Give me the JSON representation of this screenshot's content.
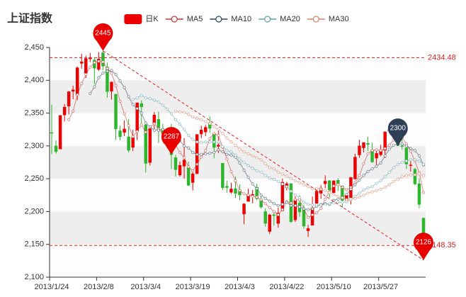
{
  "chart_data": {
    "type": "candlestick",
    "title": "上证指数",
    "categories": [
      "2013/1/24",
      null,
      null,
      null,
      null,
      null,
      null,
      null,
      null,
      null,
      null,
      "2013/2/8",
      null,
      null,
      null,
      null,
      null,
      null,
      null,
      null,
      null,
      null,
      "2013/3/4",
      null,
      null,
      null,
      null,
      null,
      null,
      null,
      null,
      null,
      null,
      "2013/3/19",
      null,
      null,
      null,
      null,
      null,
      null,
      null,
      null,
      null,
      null,
      "2013/4/3",
      null,
      null,
      null,
      null,
      null,
      null,
      null,
      null,
      null,
      null,
      "2013/4/22",
      null,
      null,
      null,
      null,
      null,
      null,
      null,
      null,
      null,
      null,
      "2013/5/10",
      null,
      null,
      null,
      null,
      null,
      null,
      null,
      null,
      null,
      null,
      "2013/5/27",
      null,
      null,
      null,
      null,
      null,
      null,
      null,
      null,
      null,
      null
    ],
    "series": [
      {
        "name": "日K",
        "type": "candlestick",
        "up_color": "#ec0000",
        "down_color": "#2db52d",
        "values": [
          [
            2320.26,
            2320.26,
            2287.3,
            2362.94
          ],
          [
            2300,
            2291.3,
            2288.26,
            2308.38
          ],
          [
            2295.35,
            2346.5,
            2295.35,
            2346.92
          ],
          [
            2347.22,
            2358.98,
            2337.35,
            2363.8
          ],
          [
            2360.75,
            2382.48,
            2347.89,
            2383.76
          ],
          [
            2383.43,
            2385.42,
            2371.23,
            2391.82
          ],
          [
            2377.41,
            2419.02,
            2369.57,
            2421.15
          ],
          [
            2425.92,
            2428.15,
            2417.58,
            2440.38
          ],
          [
            2411,
            2433.13,
            2403.3,
            2437.42
          ],
          [
            2432.68,
            2434.48,
            2427.7,
            2441.73
          ],
          [
            2430.69,
            2418.53,
            2394.22,
            2433.89
          ],
          [
            2416.62,
            2432.4,
            2414.4,
            2443.03
          ],
          [
            2441.91,
            2421.56,
            2415.43,
            2444.8
          ],
          [
            2420.26,
            2382.91,
            2373.53,
            2427.07
          ],
          [
            2383.49,
            2397.18,
            2370.61,
            2397.94
          ],
          [
            2378.82,
            2325.95,
            2309.17,
            2378.82
          ],
          [
            2322.94,
            2314.16,
            2308.76,
            2330.88
          ],
          [
            2320.62,
            2325.82,
            2315.01,
            2338.78
          ],
          [
            2313.74,
            2293.34,
            2289.89,
            2340.71
          ],
          [
            2297.77,
            2313.22,
            2292.03,
            2324.63
          ],
          [
            2322.32,
            2365.59,
            2308.92,
            2366.16
          ],
          [
            2364.54,
            2359.51,
            2330.86,
            2369.65
          ],
          [
            2332.08,
            2273.4,
            2259.25,
            2333.54
          ],
          [
            2274.81,
            2326.31,
            2270.1,
            2328.14
          ],
          [
            2333.61,
            2347.18,
            2321.6,
            2351.44
          ],
          [
            2340.44,
            2324.29,
            2304.27,
            2352.02
          ],
          [
            2326.42,
            2318.61,
            2314.59,
            2333.67
          ],
          [
            2314.68,
            2310.59,
            2296.58,
            2320.96
          ],
          [
            2309.16,
            2286.6,
            2264.83,
            2333.29
          ],
          [
            2282.17,
            2263.97,
            2253.25,
            2286.33
          ],
          [
            2255.77,
            2270.28,
            2253.31,
            2276.22
          ],
          [
            2269.31,
            2278.4,
            2250,
            2312.08
          ],
          [
            2267.29,
            2240.02,
            2239.21,
            2276.05
          ],
          [
            2244.26,
            2257.43,
            2232.02,
            2261.31
          ],
          [
            2257.74,
            2317.37,
            2257.42,
            2317.86
          ],
          [
            2318.21,
            2324.24,
            2311.6,
            2330.81
          ],
          [
            2321.4,
            2328.28,
            2314.97,
            2332
          ],
          [
            2334.74,
            2326.72,
            2319.91,
            2344.89
          ],
          [
            2318.58,
            2297.67,
            2281.12,
            2319.99
          ],
          [
            2299.38,
            2301.26,
            2289,
            2323.48
          ],
          [
            2273.55,
            2236.3,
            2232.91,
            2273.55
          ],
          [
            2238.49,
            2236.62,
            2228.81,
            2246.87
          ],
          [
            2229.46,
            2234.4,
            2227.31,
            2243.95
          ],
          [
            2234.9,
            2227.74,
            2220.44,
            2253.42
          ],
          [
            2232.69,
            2225.29,
            2217.25,
            2241.34
          ],
          [
            2196.24,
            2211.59,
            2180.67,
            2212.59
          ],
          [
            2215.47,
            2225.77,
            2215.47,
            2234.73
          ],
          [
            2224.93,
            2226.13,
            2212.56,
            2233.04
          ],
          [
            2236.98,
            2219.55,
            2217.26,
            2242.48
          ],
          [
            2218.09,
            2206.78,
            2204.44,
            2226.26
          ],
          [
            2199.91,
            2181.94,
            2177.39,
            2204.99
          ],
          [
            2169.63,
            2194.85,
            2165.78,
            2196.43
          ],
          [
            2195.03,
            2193.8,
            2178.47,
            2197.51
          ],
          [
            2181.82,
            2197.6,
            2175.44,
            2206.03
          ],
          [
            2201.12,
            2244.64,
            2200.58,
            2250.11
          ],
          [
            2236.4,
            2242.17,
            2232.26,
            2245.12
          ],
          [
            2242.62,
            2184.54,
            2182.81,
            2242.62
          ],
          [
            2187.35,
            2218.32,
            2184.11,
            2226.12
          ],
          [
            2213.19,
            2199.31,
            2191.85,
            2224.63
          ],
          [
            2203.89,
            2177.91,
            2173.86,
            2210.58
          ],
          [
            2170.78,
            2174.12,
            2161.14,
            2179.65
          ],
          [
            2179.05,
            2205.5,
            2179.05,
            2222.81
          ],
          [
            2212.5,
            2231.17,
            2212.5,
            2236.07
          ],
          [
            2227.86,
            2235.57,
            2219.44,
            2240.26
          ],
          [
            2242.39,
            2246.3,
            2235.42,
            2255.21
          ],
          [
            2246.96,
            2232.97,
            2221.38,
            2247.86
          ],
          [
            2228.82,
            2246.83,
            2225.81,
            2247.67
          ],
          [
            2247.68,
            2241.92,
            2231.36,
            2250.85
          ],
          [
            2238.9,
            2217.01,
            2205.87,
            2239.93
          ],
          [
            2217.09,
            2224.8,
            2213.58,
            2225.19
          ],
          [
            2221.34,
            2251.81,
            2210.77,
            2252.87
          ],
          [
            2249.81,
            2282.87,
            2248.41,
            2288.09
          ],
          [
            2286.33,
            2299.99,
            2281.9,
            2309.39
          ],
          [
            2297.11,
            2305.11,
            2290.12,
            2305.3
          ],
          [
            2303.75,
            2302.4,
            2292.43,
            2314.18
          ],
          [
            2293.81,
            2275.67,
            2274.1,
            2304.95
          ],
          [
            2281.45,
            2288.53,
            2270.25,
            2292.59
          ],
          [
            2286.66,
            2293.08,
            2283.94,
            2301.7
          ],
          [
            2293.4,
            2321.32,
            2281.47,
            2322.1
          ],
          [
            2323.54,
            2324.02,
            2321.17,
            2334.33
          ],
          [
            2316.25,
            2317.75,
            2310.49,
            2325.72
          ],
          [
            2320.74,
            2300.59,
            2299.37,
            2325.53
          ],
          [
            2300.21,
            2299.25,
            2294.11,
            2313.43
          ],
          [
            2297.1,
            2272.42,
            2264.76,
            2297.1
          ],
          [
            2270.71,
            2270.93,
            2260.87,
            2276.86
          ],
          [
            2264.43,
            2242.11,
            2240.07,
            2266.69
          ],
          [
            2242.26,
            2210.9,
            2205.07,
            2250.63
          ],
          [
            2190.1,
            2148.35,
            2126.22,
            2190.1
          ]
        ]
      },
      {
        "name": "MA5",
        "type": "line",
        "color": "#c23531",
        "values": [
          null,
          null,
          null,
          null,
          2340,
          2353,
          2378,
          2395,
          2409,
          2420,
          2427,
          2429,
          2428,
          2418,
          2411,
          2392,
          2368,
          2349,
          2331,
          2314,
          2322,
          2332,
          2321,
          2328,
          2334,
          2326,
          2318,
          2325,
          2318,
          2301,
          2290,
          2282,
          2268,
          2262,
          2272,
          2283,
          2293,
          2311,
          2319,
          2316,
          2298,
          2280,
          2261,
          2247,
          2232,
          2227,
          2225,
          2223,
          2222,
          2218,
          2212,
          2206,
          2200,
          2195,
          2203,
          2215,
          2213,
          2218,
          2218,
          2204,
          2191,
          2195,
          2198,
          2205,
          2219,
          2230,
          2239,
          2241,
          2237,
          2233,
          2237,
          2244,
          2255,
          2273,
          2288,
          2293,
          2294,
          2293,
          2296,
          2301,
          2309,
          2311,
          2313,
          2303,
          2292,
          2277,
          2259,
          2229
        ]
      },
      {
        "name": "MA10",
        "type": "line",
        "color": "#2f4554",
        "values": [
          null,
          null,
          null,
          null,
          null,
          null,
          null,
          null,
          null,
          2380,
          2390,
          2404,
          2411,
          2414,
          2415,
          2409,
          2399,
          2389,
          2375,
          2363,
          2357,
          2350,
          2335,
          2329,
          2324,
          2324,
          2325,
          2323,
          2323,
          2318,
          2308,
          2300,
          2297,
          2290,
          2287,
          2287,
          2288,
          2289,
          2290,
          2294,
          2291,
          2287,
          2286,
          2283,
          2274,
          2263,
          2252,
          2242,
          2235,
          2225,
          2220,
          2216,
          2212,
          2209,
          2211,
          2214,
          2209,
          2209,
          2207,
          2204,
          2203,
          2204,
          2208,
          2211,
          2212,
          2211,
          2217,
          2219,
          2221,
          2226,
          2234,
          2241,
          2248,
          2255,
          2261,
          2265,
          2269,
          2274,
          2285,
          2295,
          2301,
          2303,
          2303,
          2300,
          2296,
          2293,
          2285,
          2271
        ]
      },
      {
        "name": "MA20",
        "type": "line",
        "color": "#61a0a8",
        "values": [
          null,
          null,
          null,
          null,
          null,
          null,
          null,
          null,
          null,
          null,
          null,
          null,
          null,
          null,
          null,
          null,
          null,
          null,
          null,
          2371,
          2373,
          2377,
          2373,
          2372,
          2370,
          2367,
          2362,
          2356,
          2349,
          2340,
          2333,
          2325,
          2316,
          2310,
          2306,
          2305,
          2306,
          2306,
          2306,
          2306,
          2299,
          2293,
          2291,
          2286,
          2280,
          2275,
          2270,
          2266,
          2262,
          2260,
          2255,
          2251,
          2249,
          2246,
          2242,
          2238,
          2231,
          2225,
          2221,
          2214,
          2211,
          2210,
          2210,
          2210,
          2211,
          2212,
          2213,
          2214,
          2214,
          2215,
          2218,
          2223,
          2228,
          2233,
          2236,
          2238,
          2243,
          2247,
          2253,
          2260,
          2267,
          2272,
          2275,
          2277,
          2279,
          2279,
          2277,
          2272
        ]
      },
      {
        "name": "MA30",
        "type": "line",
        "color": "#d48265",
        "values": [
          null,
          null,
          null,
          null,
          null,
          null,
          null,
          null,
          null,
          null,
          null,
          null,
          null,
          null,
          null,
          null,
          null,
          null,
          null,
          null,
          null,
          null,
          null,
          null,
          null,
          null,
          null,
          null,
          null,
          2353,
          2352,
          2351,
          2348,
          2344,
          2342,
          2340,
          2337,
          2334,
          2329,
          2325,
          2319,
          2312,
          2306,
          2301,
          2295,
          2291,
          2288,
          2285,
          2282,
          2279,
          2273,
          2267,
          2265,
          2260,
          2257,
          2254,
          2250,
          2247,
          2244,
          2241,
          2238,
          2235,
          2235,
          2234,
          2232,
          2229,
          2226,
          2223,
          2221,
          2218,
          2219,
          2220,
          2222,
          2225,
          2228,
          2230,
          2232,
          2234,
          2237,
          2241,
          2246,
          2249,
          2253,
          2255,
          2256,
          2256,
          2257,
          2255
        ]
      }
    ],
    "ylim": [
      2100,
      2450
    ],
    "yticks": [
      {
        "value": 2100,
        "label": "2,100"
      },
      {
        "value": 2150,
        "label": "2,150"
      },
      {
        "value": 2200,
        "label": "2,200"
      },
      {
        "value": 2250,
        "label": "2,250"
      },
      {
        "value": 2300,
        "label": "2,300"
      },
      {
        "value": 2350,
        "label": "2,350"
      },
      {
        "value": 2400,
        "label": "2,400"
      },
      {
        "value": 2450,
        "label": "2,450"
      }
    ],
    "split_area": true,
    "mark_lines": [
      {
        "value": 2434.48,
        "color": "#e02020"
      },
      {
        "value": 2148.35,
        "color": "#e02020"
      }
    ],
    "pins": [
      {
        "value": 2445,
        "x": 12,
        "color": "#e80000"
      },
      {
        "value": 2287,
        "x": 28,
        "color": "#e80000"
      },
      {
        "value": 2300,
        "x": 81,
        "color": "#2f3f56"
      },
      {
        "value": 2126,
        "x": 87,
        "color": "#e80000"
      }
    ],
    "trend_line": true
  }
}
